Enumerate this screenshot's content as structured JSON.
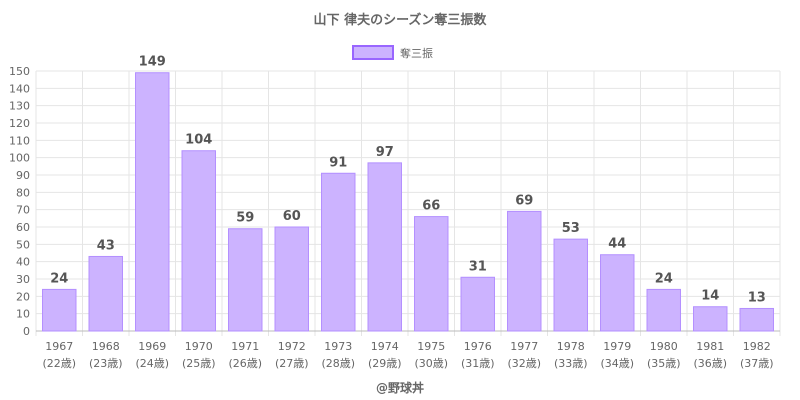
{
  "chart_data": {
    "type": "bar",
    "title": "山下 律夫のシーズン奪三振数",
    "legend": {
      "label": "奪三振",
      "position": "top"
    },
    "categories": [
      "1967",
      "1968",
      "1969",
      "1970",
      "1971",
      "1972",
      "1973",
      "1974",
      "1975",
      "1976",
      "1977",
      "1978",
      "1979",
      "1980",
      "1981",
      "1982"
    ],
    "sublabels": [
      "(22歳)",
      "(23歳)",
      "(24歳)",
      "(25歳)",
      "(26歳)",
      "(27歳)",
      "(28歳)",
      "(29歳)",
      "(30歳)",
      "(31歳)",
      "(32歳)",
      "(33歳)",
      "(34歳)",
      "(35歳)",
      "(36歳)",
      "(37歳)"
    ],
    "series": [
      {
        "name": "奪三振",
        "values": [
          24,
          43,
          149,
          104,
          59,
          60,
          91,
          97,
          66,
          31,
          69,
          53,
          44,
          24,
          14,
          13
        ]
      }
    ],
    "ylim": [
      0,
      150
    ],
    "ytick_step": 10,
    "grid": true,
    "colors": {
      "bar_fill": "#ccb3ff",
      "bar_stroke": "#b38fff",
      "legend_stroke": "#9966ff",
      "grid": "#e5e5e5",
      "text": "#666666",
      "label": "#555555"
    },
    "credit": "@野球丼"
  }
}
